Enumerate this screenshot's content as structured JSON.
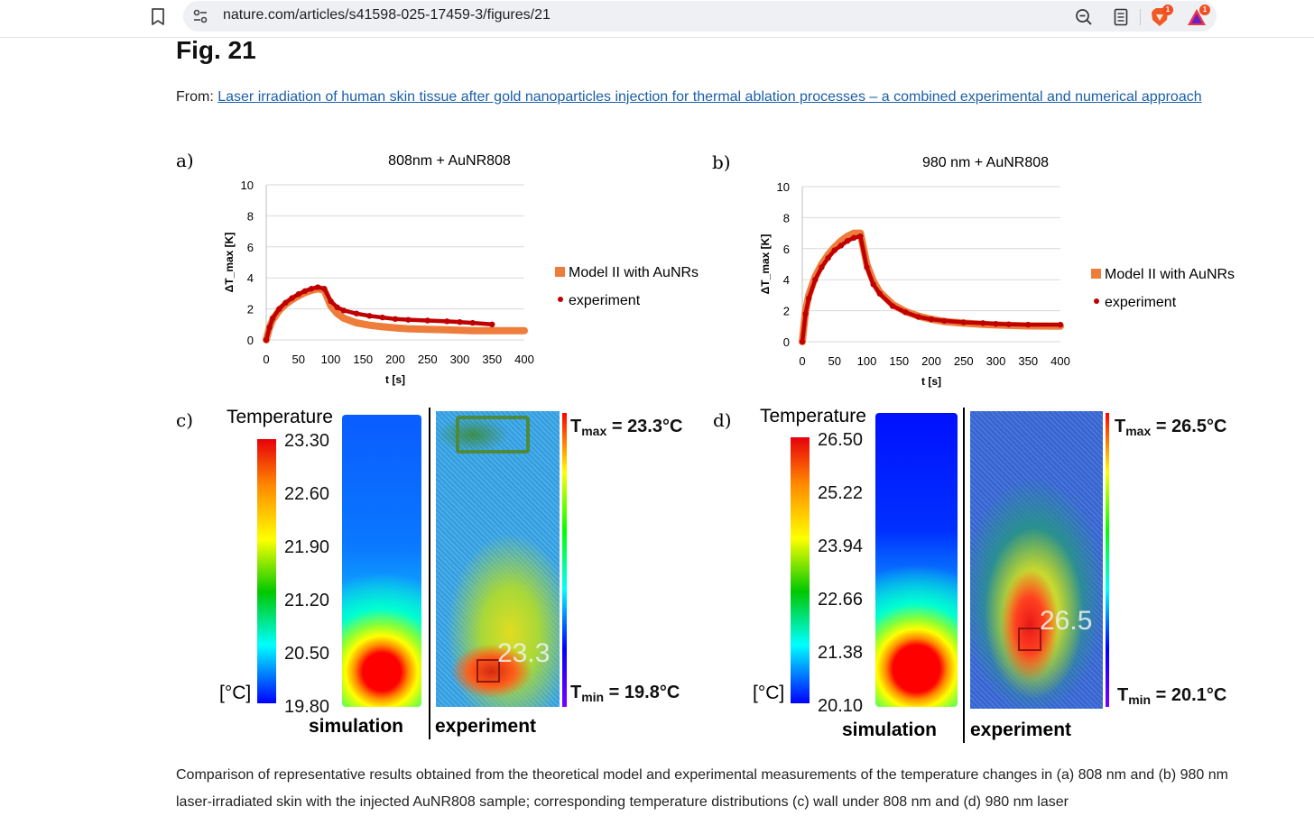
{
  "browser": {
    "url": "nature.com/articles/s41598-025-17459-3/figures/21",
    "icons": [
      "bookmark-icon",
      "site-settings-icon",
      "zoom-out-icon",
      "reader-mode-icon",
      "brave-shields-icon",
      "rewards-icon"
    ],
    "shield_badge": "1",
    "rewards_badge": "1"
  },
  "figure": {
    "title": "Fig. 21",
    "from_prefix": "From:",
    "article_link": "Laser irradiation of human skin tissue after gold nanoparticles injection for thermal ablation processes – a combined experimental and numerical approach"
  },
  "colors": {
    "model": "#ee7d3b",
    "experiment": "#c00000",
    "link": "#1a5fa8"
  },
  "panels": {
    "a": {
      "label": "a)",
      "model_peak_value": 3.3,
      "experiment_peak_value": 3.4,
      "model_final_value": 0.6,
      "experiment_final_value": 1.0
    },
    "b": {
      "label": "b)",
      "model_peak_value": 7.0,
      "experiment_peak_value": 6.8,
      "model_final_value": 1.0,
      "experiment_final_value": 1.1
    },
    "c": {
      "label": "c)",
      "heading": "Temperature",
      "unit": "[°C]",
      "scale": [
        "23.30",
        "22.60",
        "21.90",
        "21.20",
        "20.50",
        "19.80"
      ],
      "tmax": "23.3°C",
      "tmin": "19.8°C",
      "marker": "23.3",
      "sim_label": "simulation",
      "exp_label": "experiment"
    },
    "d": {
      "label": "d)",
      "heading": "Temperature",
      "unit": "[°C]",
      "scale": [
        "26.50",
        "25.22",
        "23.94",
        "22.66",
        "21.38",
        "20.10"
      ],
      "tmax": "26.5°C",
      "tmin": "20.1°C",
      "marker": "26.5",
      "sim_label": "simulation",
      "exp_label": "experiment"
    }
  },
  "t_label": "T",
  "max_sub": "max",
  "min_sub": "min",
  "eq": "=",
  "chart_data": [
    {
      "type": "line",
      "title": "808nm + AuNR808",
      "xlabel": "t [s]",
      "ylabel": "ΔT_max [K]",
      "xlim": [
        0,
        400
      ],
      "ylim": [
        0,
        10
      ],
      "xticks": [
        "0",
        "50",
        "100",
        "150",
        "200",
        "250",
        "300",
        "350",
        "400"
      ],
      "yticks": [
        "0",
        "2",
        "4",
        "6",
        "8",
        "10"
      ],
      "legend": [
        "Model II with AuNRs",
        "experiment"
      ],
      "series": [
        {
          "name": "Model II with AuNRs",
          "x": [
            0,
            5,
            10,
            20,
            30,
            40,
            50,
            60,
            70,
            80,
            90,
            100,
            110,
            120,
            140,
            160,
            180,
            200,
            220,
            250,
            280,
            300,
            320,
            350,
            400
          ],
          "values": [
            0,
            0.8,
            1.3,
            1.9,
            2.3,
            2.6,
            2.85,
            3.05,
            3.2,
            3.3,
            3.2,
            2.2,
            1.7,
            1.4,
            1.1,
            0.95,
            0.85,
            0.78,
            0.72,
            0.68,
            0.65,
            0.62,
            0.6,
            0.6,
            0.6
          ]
        },
        {
          "name": "experiment",
          "x": [
            0,
            5,
            10,
            20,
            30,
            40,
            50,
            60,
            70,
            80,
            90,
            100,
            110,
            120,
            140,
            160,
            180,
            200,
            220,
            250,
            280,
            300,
            320,
            350
          ],
          "values": [
            0,
            0.8,
            1.4,
            2.0,
            2.4,
            2.7,
            2.95,
            3.15,
            3.3,
            3.4,
            3.3,
            2.5,
            2.1,
            1.9,
            1.7,
            1.55,
            1.45,
            1.35,
            1.3,
            1.25,
            1.2,
            1.15,
            1.1,
            1.0
          ]
        }
      ]
    },
    {
      "type": "line",
      "title": "980 nm + AuNR808",
      "xlabel": "t [s]",
      "ylabel": "ΔT_max [K]",
      "xlim": [
        0,
        400
      ],
      "ylim": [
        0,
        10
      ],
      "xticks": [
        "0",
        "50",
        "100",
        "150",
        "200",
        "250",
        "300",
        "350",
        "400"
      ],
      "yticks": [
        "0",
        "2",
        "4",
        "6",
        "8",
        "10"
      ],
      "legend": [
        "Model II with AuNRs",
        "experiment"
      ],
      "series": [
        {
          "name": "Model II with AuNRs",
          "x": [
            0,
            5,
            10,
            20,
            30,
            40,
            50,
            60,
            70,
            80,
            90,
            100,
            110,
            120,
            140,
            160,
            180,
            200,
            220,
            250,
            280,
            300,
            320,
            350,
            400
          ],
          "values": [
            0,
            2.0,
            3.0,
            4.2,
            5.0,
            5.6,
            6.1,
            6.5,
            6.8,
            7.0,
            7.0,
            5.0,
            3.9,
            3.2,
            2.4,
            1.95,
            1.65,
            1.45,
            1.3,
            1.2,
            1.12,
            1.08,
            1.05,
            1.02,
            1.0
          ]
        },
        {
          "name": "experiment",
          "x": [
            0,
            5,
            10,
            20,
            30,
            40,
            50,
            60,
            70,
            80,
            90,
            100,
            110,
            120,
            140,
            160,
            180,
            200,
            220,
            250,
            280,
            300,
            320,
            350,
            400
          ],
          "values": [
            0,
            1.8,
            2.8,
            4.0,
            4.8,
            5.4,
            5.9,
            6.2,
            6.5,
            6.7,
            6.8,
            4.8,
            3.7,
            3.1,
            2.3,
            1.9,
            1.6,
            1.45,
            1.35,
            1.25,
            1.2,
            1.15,
            1.12,
            1.1,
            1.1
          ]
        }
      ]
    }
  ],
  "caption": "Comparison of representative results obtained from the theoretical model and experimental measurements of the temperature changes in (a) 808 nm and (b) 980 nm laser-irradiated skin with the injected AuNR808 sample; corresponding temperature distributions (c) wall under 808 nm and (d) 980 nm laser"
}
